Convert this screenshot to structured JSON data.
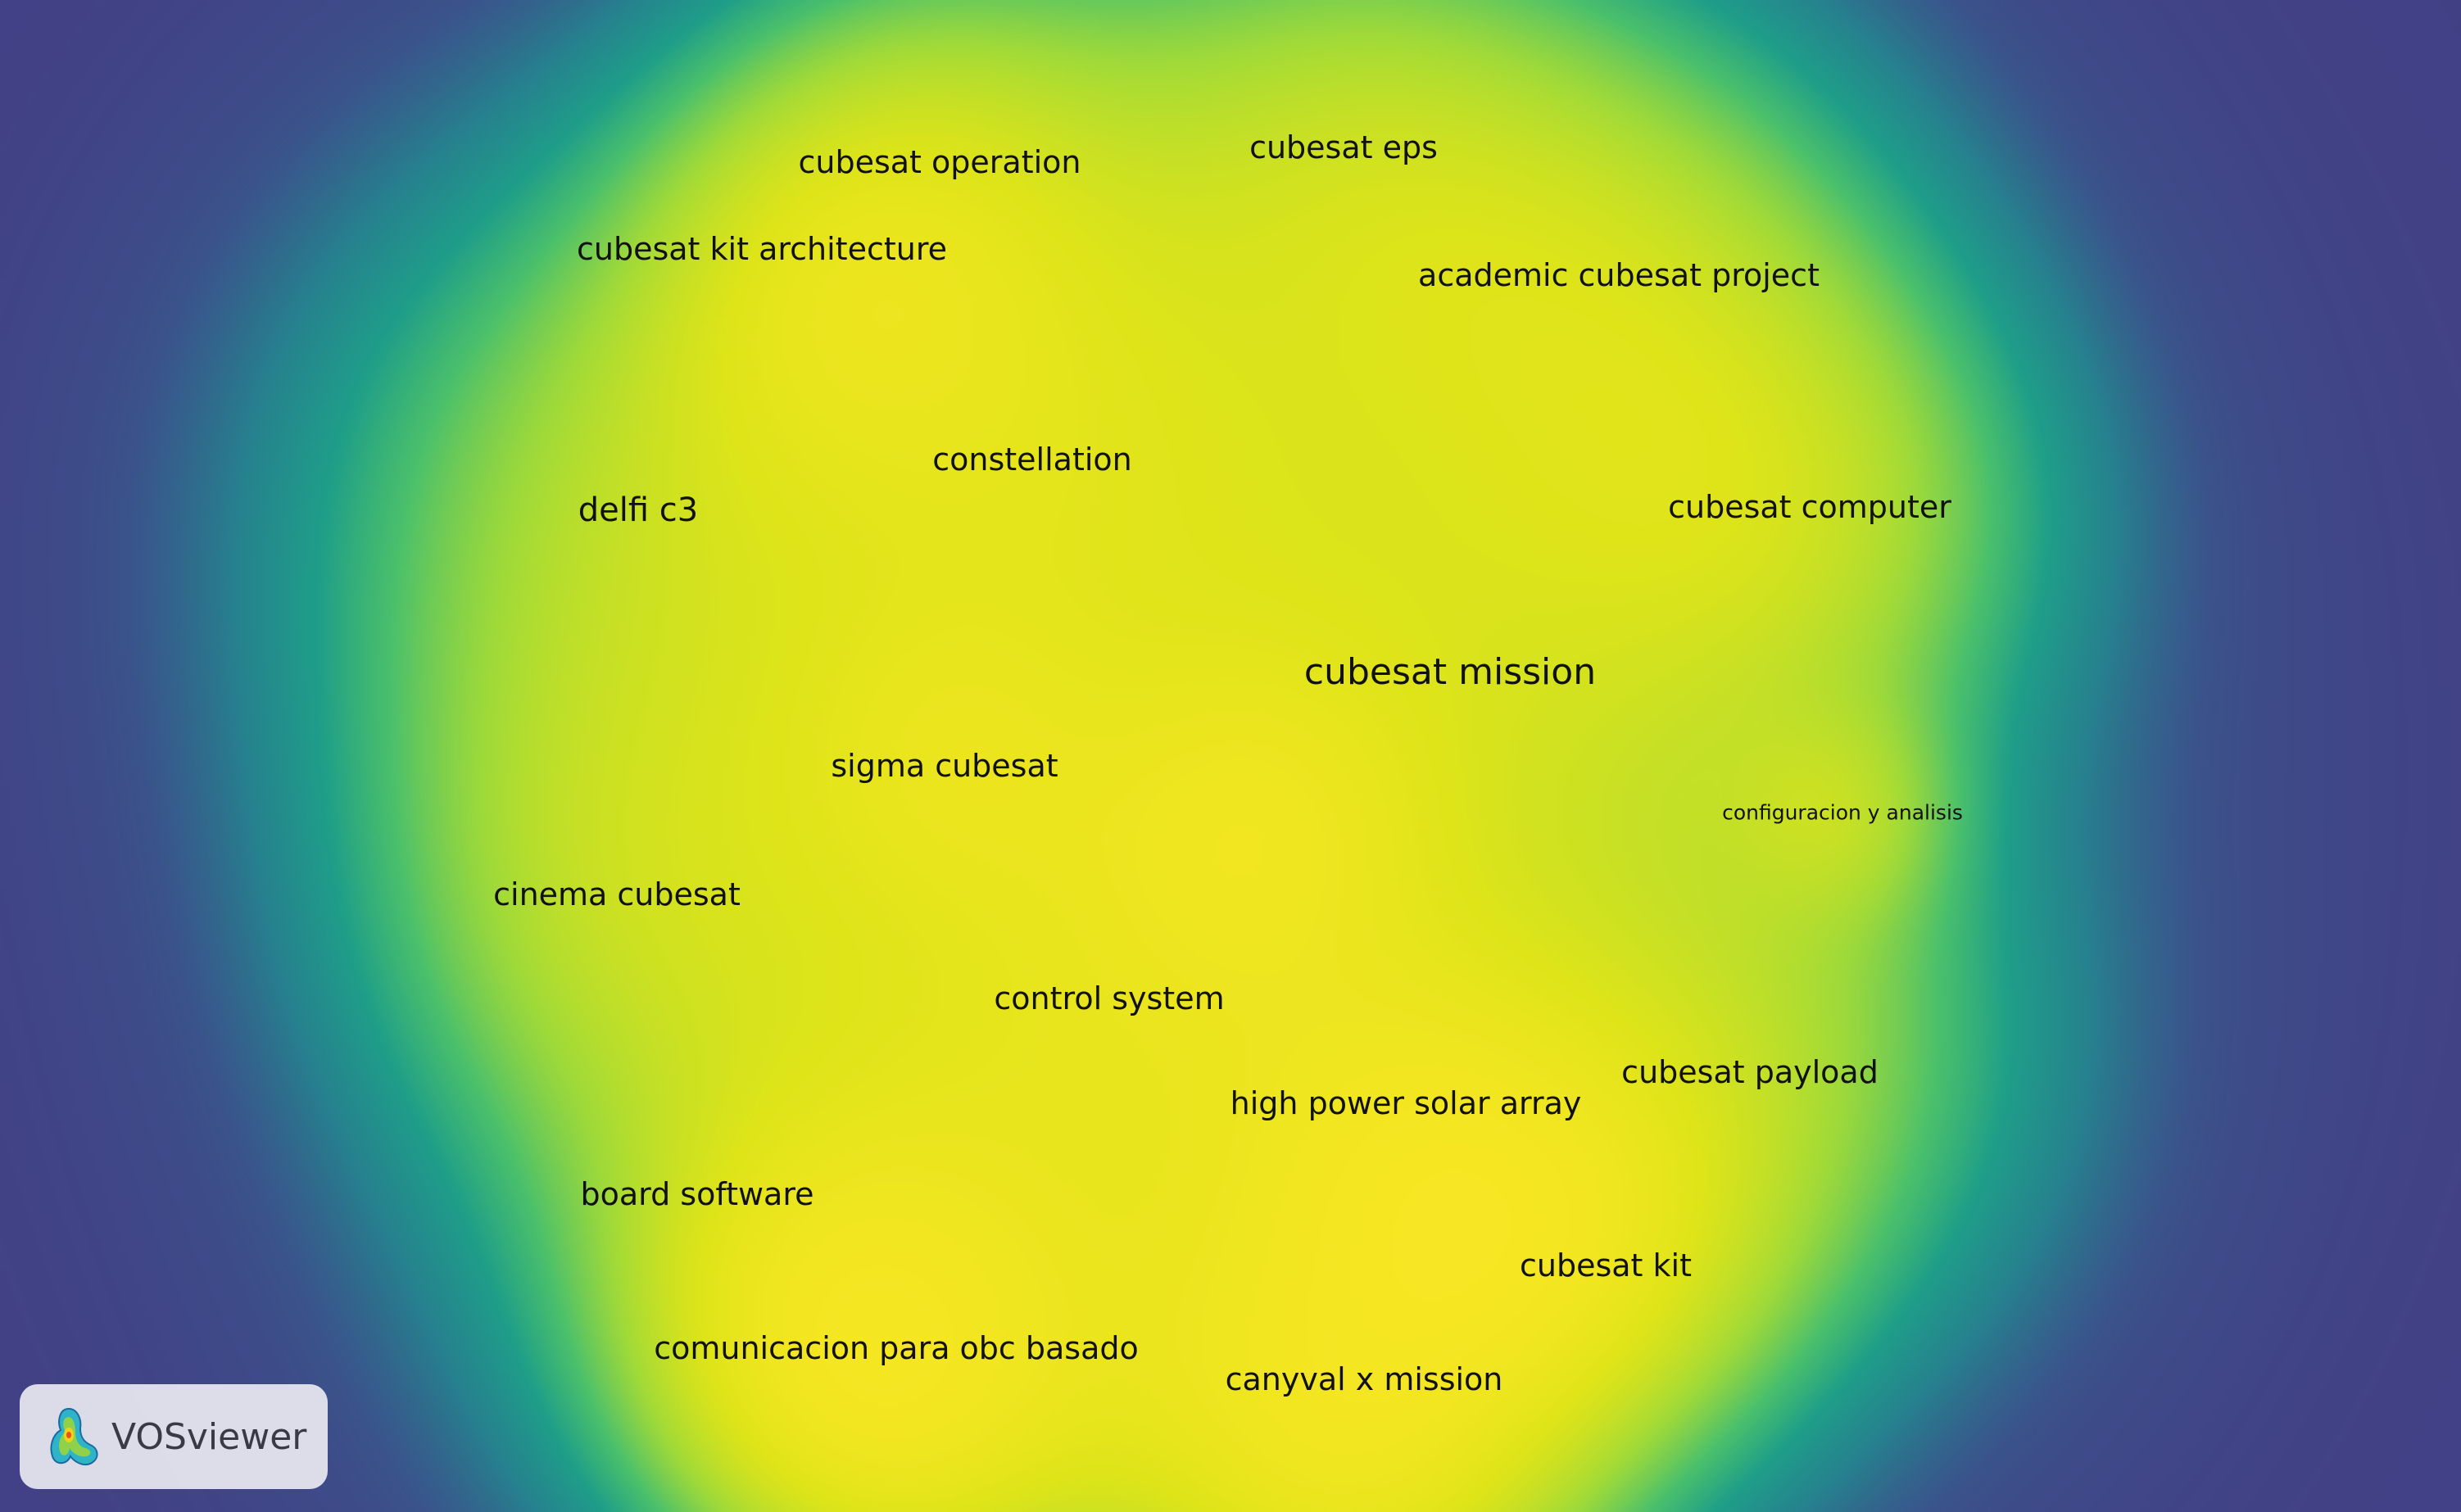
{
  "map": {
    "type": "density visualization",
    "terms": [
      {
        "id": "cubesat-operation",
        "label": "cubesat operation",
        "weight": 0.55
      },
      {
        "id": "cubesat-eps",
        "label": "cubesat eps",
        "weight": 0.8
      },
      {
        "id": "cubesat-kit-architecture",
        "label": "cubesat kit architecture",
        "weight": 0.45
      },
      {
        "id": "academic-cubesat-project",
        "label": "academic cubesat project",
        "weight": 0.75
      },
      {
        "id": "delfi-c3",
        "label": "delfi c3",
        "weight": 0.95
      },
      {
        "id": "constellation",
        "label": "constellation",
        "weight": 0.85
      },
      {
        "id": "cubesat-computer",
        "label": "cubesat computer",
        "weight": 0.65
      },
      {
        "id": "cubesat-mission",
        "label": "cubesat mission",
        "weight": 1.0
      },
      {
        "id": "sigma-cubesat",
        "label": "sigma cubesat",
        "weight": 0.3
      },
      {
        "id": "configuracion-y-analisis",
        "label": "configuracion y analisis",
        "weight": 0.1
      },
      {
        "id": "cinema-cubesat",
        "label": "cinema cubesat",
        "weight": 0.6
      },
      {
        "id": "control-system",
        "label": "control system",
        "weight": 0.6
      },
      {
        "id": "high-power-solar-array",
        "label": "high power solar array",
        "weight": 0.4
      },
      {
        "id": "cubesat-payload",
        "label": "cubesat payload",
        "weight": 0.7
      },
      {
        "id": "board-software",
        "label": "board software",
        "weight": 0.75
      },
      {
        "id": "cubesat-kit",
        "label": "cubesat kit",
        "weight": 0.45
      },
      {
        "id": "comunicacion-para-obc-basado",
        "label": "comunicacion para obc basado",
        "weight": 0.5
      },
      {
        "id": "canyval-x-mission",
        "label": "canyval x mission",
        "weight": 0.75
      }
    ]
  },
  "logo": {
    "icon": "vosviewer-logo-icon",
    "label": "VOSviewer"
  }
}
